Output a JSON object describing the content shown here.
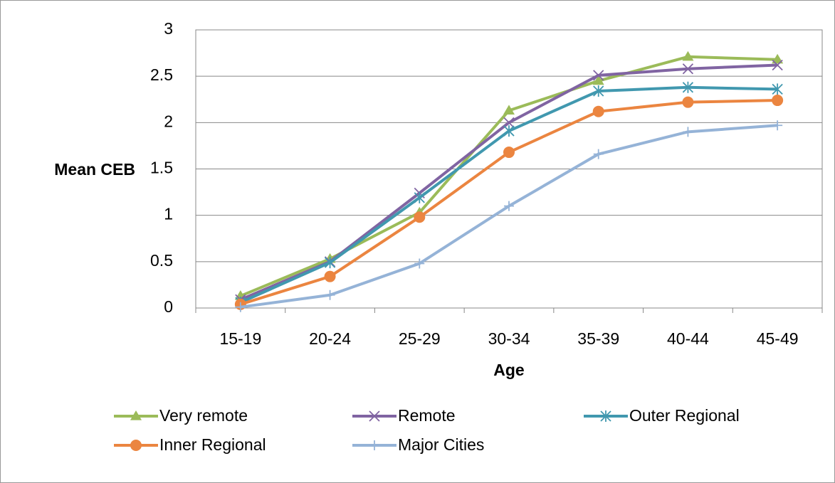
{
  "chart_data": {
    "type": "line",
    "y_label": "Mean CEB",
    "x_label": "Age",
    "categories": [
      "15-19",
      "20-24",
      "25-29",
      "30-34",
      "35-39",
      "40-44",
      "45-49"
    ],
    "series": [
      {
        "name": "Very remote",
        "color": "#9bbb59",
        "marker": "triangle",
        "values": [
          0.13,
          0.53,
          1.03,
          2.13,
          2.45,
          2.71,
          2.68
        ]
      },
      {
        "name": "Remote",
        "color": "#8064a2",
        "marker": "x",
        "values": [
          0.09,
          0.5,
          1.24,
          2.0,
          2.51,
          2.58,
          2.62
        ]
      },
      {
        "name": "Outer Regional",
        "color": "#4198af",
        "marker": "asterisk",
        "values": [
          0.06,
          0.49,
          1.19,
          1.91,
          2.34,
          2.38,
          2.36
        ]
      },
      {
        "name": "Inner Regional",
        "color": "#eb8540",
        "marker": "circle",
        "values": [
          0.04,
          0.34,
          0.98,
          1.68,
          2.12,
          2.22,
          2.24
        ]
      },
      {
        "name": "Major Cities",
        "color": "#95b3d7",
        "marker": "plus",
        "values": [
          0.01,
          0.14,
          0.48,
          1.1,
          1.66,
          1.9,
          1.97
        ]
      }
    ],
    "ylim": [
      0,
      3
    ],
    "yticks": [
      0,
      0.5,
      1,
      1.5,
      2,
      2.5,
      3
    ],
    "grid": true,
    "legend": "bottom"
  }
}
